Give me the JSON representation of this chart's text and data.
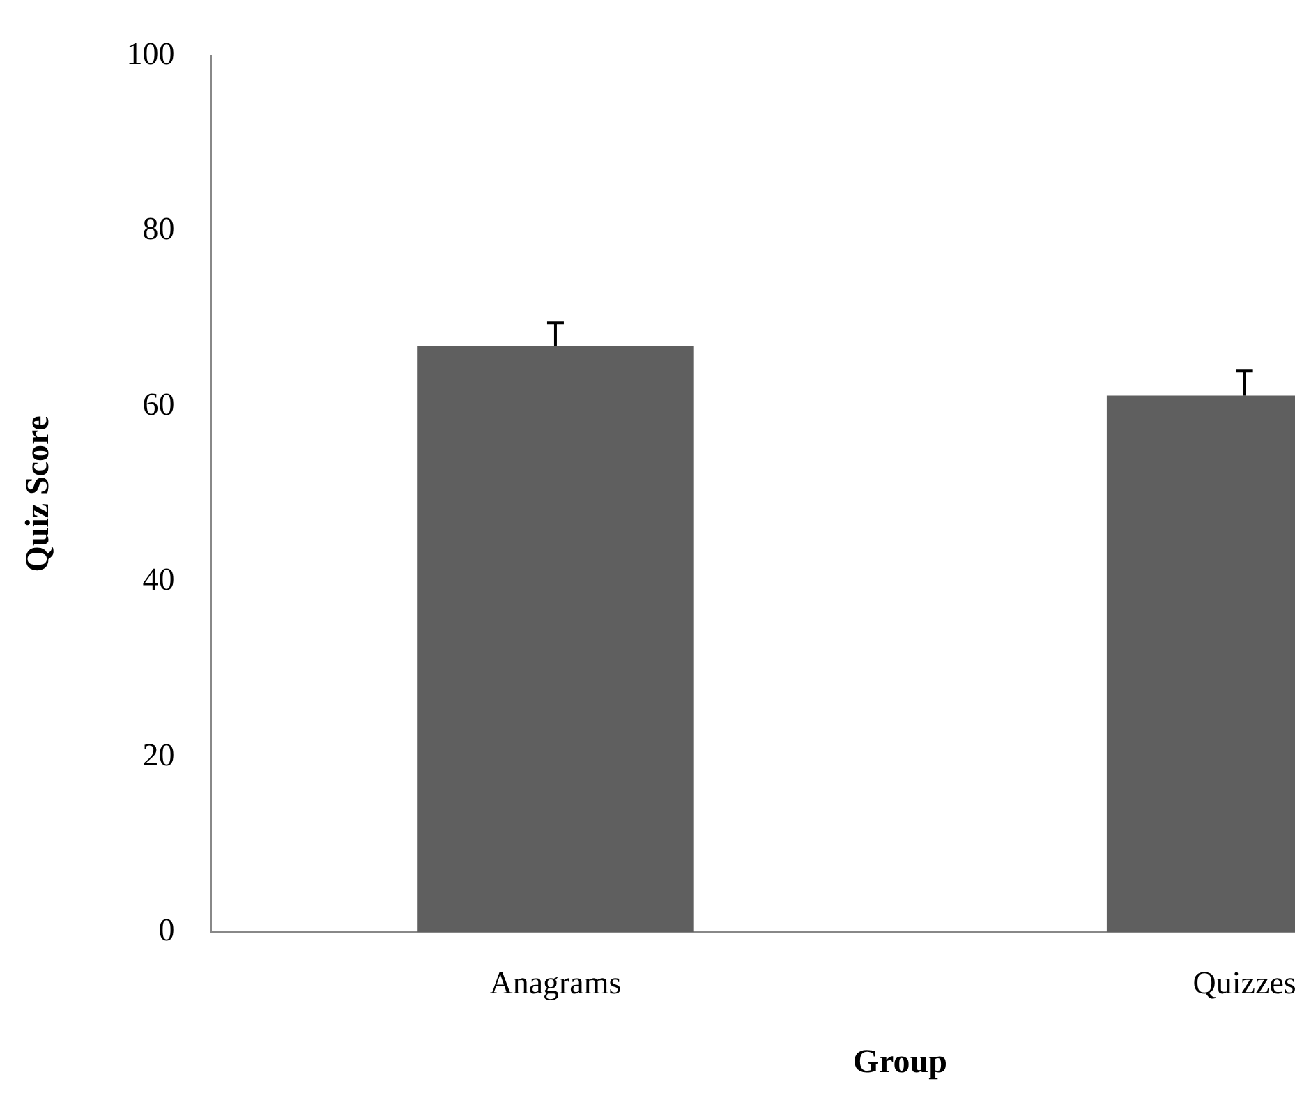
{
  "chart_data": {
    "type": "bar",
    "xlabel": "Group",
    "ylabel": "Quiz Score",
    "categories": [
      "Anagrams",
      "Quizzes"
    ],
    "series": [
      {
        "color": "#5f5f5f",
        "values": [
          66.8,
          61.2
        ],
        "errors": [
          [
            66.8,
            69.5
          ],
          [
            61.2,
            64.0
          ]
        ]
      }
    ],
    "ylim": [
      0,
      100
    ],
    "yticks": [
      0,
      20,
      40,
      60,
      80,
      100
    ],
    "grid": false,
    "legend": false
  }
}
